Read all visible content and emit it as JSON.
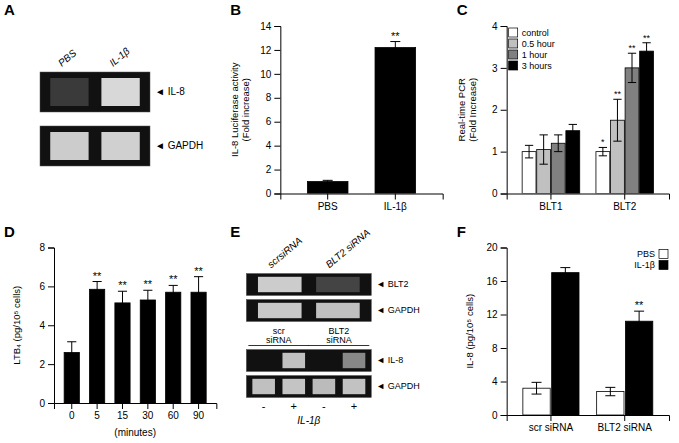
{
  "chart_data": [
    {
      "type": "gel",
      "title": "A",
      "categories": [
        "PBS",
        "IL-1β"
      ],
      "series": [
        {
          "name": "◄ IL-8",
          "colors": [
            "#3a3a3a",
            "#d8d8d8"
          ]
        },
        {
          "name": "◄ GAPDH",
          "colors": [
            "#cccccc",
            "#d0d0d0"
          ]
        }
      ]
    },
    {
      "type": "bar",
      "title": "B",
      "categories": [
        "PBS",
        "IL-1β"
      ],
      "values": [
        1.0,
        12.2
      ],
      "errors": [
        0.1,
        0.5
      ],
      "annotations": [
        null,
        "**"
      ],
      "color": "#000000",
      "ylabel": "IL-8 Luciferase activity\n(Fold increase)",
      "ylim": [
        0,
        14
      ],
      "yticks": [
        0,
        2,
        4,
        6,
        8,
        10,
        12,
        14
      ]
    },
    {
      "type": "bar",
      "title": "C",
      "categories": [
        "BLT1",
        "BLT2"
      ],
      "series": [
        {
          "name": "control",
          "color": "#ffffff",
          "values": [
            1.0,
            1.0
          ],
          "errors": [
            0.15,
            0.1
          ],
          "annotations": [
            null,
            "*"
          ]
        },
        {
          "name": "0.5 hour",
          "color": "#c0c0c0",
          "values": [
            1.05,
            1.75
          ],
          "errors": [
            0.35,
            0.5
          ],
          "annotations": [
            null,
            "**"
          ]
        },
        {
          "name": "1 hour",
          "color": "#808080",
          "values": [
            1.2,
            3.0
          ],
          "errors": [
            0.2,
            0.35
          ],
          "annotations": [
            null,
            "**"
          ]
        },
        {
          "name": "3 hours",
          "color": "#000000",
          "values": [
            1.5,
            3.4
          ],
          "errors": [
            0.15,
            0.2
          ],
          "annotations": [
            null,
            "**"
          ]
        }
      ],
      "ylabel": "Real-time PCR\n(Fold Increase)",
      "ylim": [
        0,
        4
      ],
      "yticks": [
        0,
        1,
        2,
        3,
        4
      ],
      "legend": "upper left"
    },
    {
      "type": "bar",
      "title": "D",
      "categories": [
        "0",
        "5",
        "15",
        "30",
        "60",
        "90"
      ],
      "values": [
        2.6,
        5.85,
        5.15,
        5.3,
        5.7,
        5.7
      ],
      "errors": [
        0.55,
        0.4,
        0.6,
        0.5,
        0.35,
        0.8
      ],
      "annotations": [
        null,
        "**",
        "**",
        "**",
        "**",
        "**"
      ],
      "color": "#000000",
      "xlabel": "(minutes)",
      "ylabel": "LTB₄ (pg/10⁵ cells)",
      "ylim": [
        0,
        8
      ],
      "yticks": [
        0,
        2,
        4,
        6,
        8
      ]
    },
    {
      "type": "gel",
      "title": "E",
      "categories": [
        "scrsiRNA",
        "BLT2 siRNA"
      ],
      "series": [
        {
          "name": "◄ BLT2",
          "colors": [
            "#cccccc",
            "#444444"
          ]
        },
        {
          "name": "◄ GAPDH",
          "colors": [
            "#c8c8c8",
            "#c0c0c0"
          ]
        }
      ]
    },
    {
      "type": "gel",
      "categories": [
        "-",
        "+",
        "-",
        "+"
      ],
      "groups": [
        "scr\nsiRNA",
        "BLT2\nsiRNA"
      ],
      "xlabel": "IL-1β",
      "series": [
        {
          "name": "◄ IL-8",
          "colors": [
            null,
            "#c0c0c0",
            null,
            "#888888"
          ]
        },
        {
          "name": "◄ GAPDH",
          "colors": [
            "#c0c0c0",
            "#c4c4c4",
            "#bbbbbb",
            "#c2c2c2"
          ]
        }
      ]
    },
    {
      "type": "bar",
      "title": "F",
      "categories": [
        "scr siRNA",
        "BLT2 siRNA"
      ],
      "series": [
        {
          "name": "PBS",
          "color": "#ffffff",
          "values": [
            3.2,
            2.8
          ],
          "errors": [
            0.7,
            0.5
          ]
        },
        {
          "name": "IL-1β",
          "color": "#000000",
          "values": [
            17.0,
            11.2
          ],
          "errors": [
            0.6,
            1.2
          ],
          "annotations": [
            null,
            "**"
          ]
        }
      ],
      "ylabel": "IL-8 (pg/10⁵ cells)",
      "ylim": [
        0,
        20
      ],
      "yticks": [
        0,
        4,
        8,
        12,
        16,
        20
      ],
      "legend": "upper right"
    }
  ]
}
